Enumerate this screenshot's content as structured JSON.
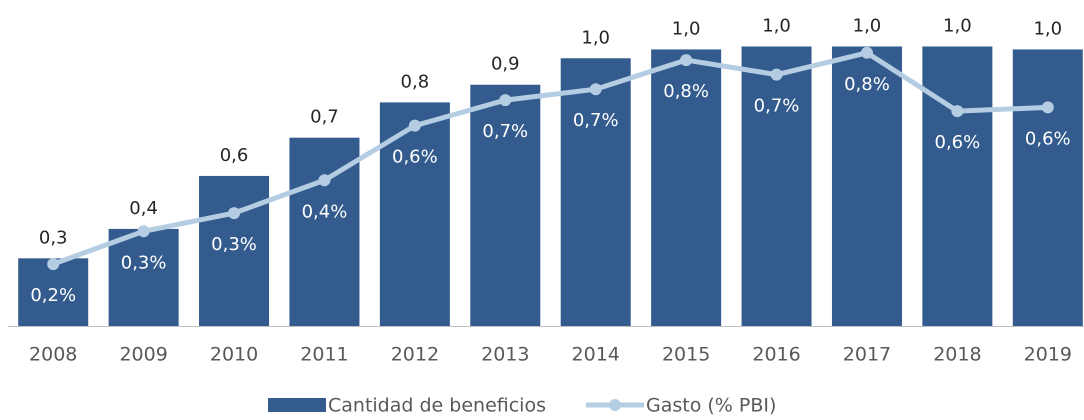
{
  "chart_data": {
    "type": "bar_line",
    "categories": [
      "2008",
      "2009",
      "2010",
      "2011",
      "2012",
      "2013",
      "2014",
      "2015",
      "2016",
      "2017",
      "2018",
      "2019"
    ],
    "series": [
      {
        "name": "Cantidad de beneficios",
        "color": "#335b8e",
        "type": "bar",
        "values": [
          0.28,
          0.38,
          0.56,
          0.69,
          0.81,
          0.87,
          0.96,
          0.99,
          1.0,
          1.0,
          1.0,
          0.99
        ],
        "value_labels": [
          "0,3",
          "0,4",
          "0,6",
          "0,7",
          "0,8",
          "0,9",
          "1,0",
          "1,0",
          "1,0",
          "1,0",
          "1,0",
          "1,0"
        ]
      },
      {
        "name": "Gasto (% PBI)",
        "color": "#b4cde3",
        "type": "line",
        "axis": "y2",
        "values": [
          0.2,
          0.29,
          0.34,
          0.43,
          0.58,
          0.65,
          0.68,
          0.76,
          0.72,
          0.78,
          0.62,
          0.63
        ],
        "value_labels": [
          "0,2%",
          "0,3%",
          "0,3%",
          "0,4%",
          "0,6%",
          "0,7%",
          "0,7%",
          "0,8%",
          "0,7%",
          "0,8%",
          "0,6%",
          "0,6%"
        ]
      }
    ],
    "ylim": [
      0.05,
      1.09
    ],
    "y2lim": [
      0.03,
      0.87
    ],
    "legend": "bottom"
  }
}
